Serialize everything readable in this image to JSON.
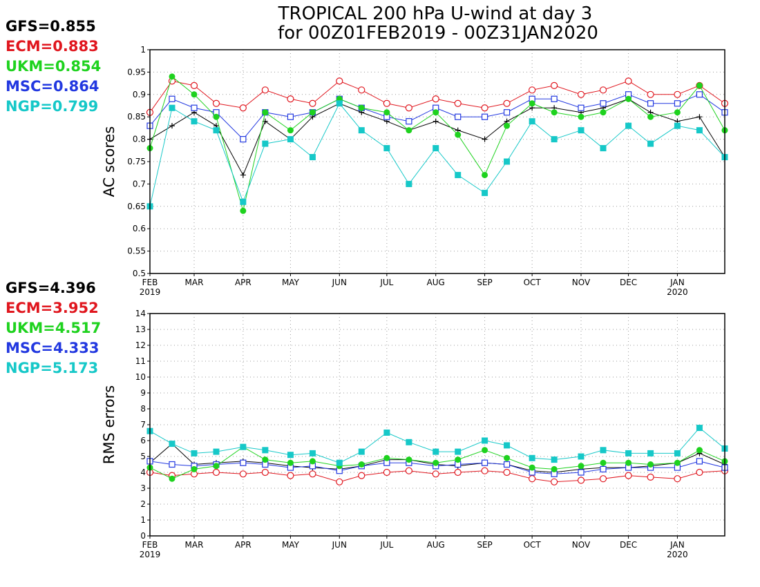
{
  "chart_data": [
    {
      "type": "line",
      "title": [
        "TROPICAL 200 hPa U-wind at day 3",
        "for 00Z01FEB2019 - 00Z31JAN2020"
      ],
      "ylabel": "AC scores",
      "ylim": [
        0.5,
        1.0
      ],
      "yticks": [
        "0.5",
        "0.55",
        "0.6",
        "0.65",
        "0.7",
        "0.75",
        "0.8",
        "0.85",
        "0.9",
        "0.95",
        "1"
      ],
      "xlim": [
        "2019-02-01",
        "2020-01-31"
      ],
      "xticks": [
        {
          "label": "FEB",
          "sub": "2019",
          "date": "2019-02-01"
        },
        {
          "label": "MAR",
          "date": "2019-03-01"
        },
        {
          "label": "APR",
          "date": "2019-04-01"
        },
        {
          "label": "MAY",
          "date": "2019-05-01"
        },
        {
          "label": "JUN",
          "date": "2019-06-01"
        },
        {
          "label": "JUL",
          "date": "2019-07-01"
        },
        {
          "label": "AUG",
          "date": "2019-08-01"
        },
        {
          "label": "SEP",
          "date": "2019-09-01"
        },
        {
          "label": "OCT",
          "date": "2019-10-01"
        },
        {
          "label": "NOV",
          "date": "2019-11-01"
        },
        {
          "label": "DEC",
          "date": "2019-12-01"
        },
        {
          "label": "JAN",
          "sub": "2020",
          "date": "2020-01-01"
        }
      ],
      "grid": true,
      "legend": [
        {
          "text": "GFS=0.855",
          "color": "#000000"
        },
        {
          "text": "ECM=0.883",
          "color": "#e0161e"
        },
        {
          "text": "UKM=0.854",
          "color": "#1ed21e"
        },
        {
          "text": "MSC=0.864",
          "color": "#2238e0"
        },
        {
          "text": "NGP=0.799",
          "color": "#16c8c8"
        }
      ],
      "series": [
        {
          "name": "GFS",
          "marker": "plus",
          "color": "#000000",
          "x": [
            "2019-02-01",
            "2019-02-15",
            "2019-03-01",
            "2019-03-15",
            "2019-04-01",
            "2019-04-15",
            "2019-05-01",
            "2019-05-15",
            "2019-06-01",
            "2019-06-15",
            "2019-07-01",
            "2019-07-15",
            "2019-08-01",
            "2019-08-15",
            "2019-09-01",
            "2019-09-15",
            "2019-10-01",
            "2019-10-15",
            "2019-11-01",
            "2019-11-15",
            "2019-12-01",
            "2019-12-15",
            "2020-01-01",
            "2020-01-15",
            "2020-01-31"
          ],
          "y": [
            0.8,
            0.83,
            0.86,
            0.83,
            0.72,
            0.84,
            0.8,
            0.85,
            0.88,
            0.86,
            0.84,
            0.82,
            0.84,
            0.82,
            0.8,
            0.84,
            0.87,
            0.87,
            0.86,
            0.87,
            0.89,
            0.86,
            0.84,
            0.85,
            0.76
          ]
        },
        {
          "name": "ECM",
          "marker": "circle",
          "color": "#e0161e",
          "x": [
            "2019-02-01",
            "2019-02-15",
            "2019-03-01",
            "2019-03-15",
            "2019-04-01",
            "2019-04-15",
            "2019-05-01",
            "2019-05-15",
            "2019-06-01",
            "2019-06-15",
            "2019-07-01",
            "2019-07-15",
            "2019-08-01",
            "2019-08-15",
            "2019-09-01",
            "2019-09-15",
            "2019-10-01",
            "2019-10-15",
            "2019-11-01",
            "2019-11-15",
            "2019-12-01",
            "2019-12-15",
            "2020-01-01",
            "2020-01-15",
            "2020-01-31"
          ],
          "y": [
            0.86,
            0.93,
            0.92,
            0.88,
            0.87,
            0.91,
            0.89,
            0.88,
            0.93,
            0.91,
            0.88,
            0.87,
            0.89,
            0.88,
            0.87,
            0.88,
            0.91,
            0.92,
            0.9,
            0.91,
            0.93,
            0.9,
            0.9,
            0.92,
            0.88
          ]
        },
        {
          "name": "UKM",
          "marker": "dot",
          "color": "#1ed21e",
          "x": [
            "2019-02-01",
            "2019-02-15",
            "2019-03-01",
            "2019-03-15",
            "2019-04-01",
            "2019-04-15",
            "2019-05-01",
            "2019-05-15",
            "2019-06-01",
            "2019-06-15",
            "2019-07-01",
            "2019-07-15",
            "2019-08-01",
            "2019-08-15",
            "2019-09-01",
            "2019-09-15",
            "2019-10-01",
            "2019-10-15",
            "2019-11-01",
            "2019-11-15",
            "2019-12-01",
            "2019-12-15",
            "2020-01-01",
            "2020-01-15",
            "2020-01-31"
          ],
          "y": [
            0.78,
            0.94,
            0.9,
            0.85,
            0.64,
            0.86,
            0.82,
            0.86,
            0.89,
            0.87,
            0.86,
            0.82,
            0.86,
            0.81,
            0.72,
            0.83,
            0.88,
            0.86,
            0.85,
            0.86,
            0.89,
            0.85,
            0.86,
            0.92,
            0.82
          ]
        },
        {
          "name": "MSC",
          "marker": "square-open",
          "color": "#2238e0",
          "x": [
            "2019-02-01",
            "2019-02-15",
            "2019-03-01",
            "2019-03-15",
            "2019-04-01",
            "2019-04-15",
            "2019-05-01",
            "2019-05-15",
            "2019-06-01",
            "2019-06-15",
            "2019-07-01",
            "2019-07-15",
            "2019-08-01",
            "2019-08-15",
            "2019-09-01",
            "2019-09-15",
            "2019-10-01",
            "2019-10-15",
            "2019-11-01",
            "2019-11-15",
            "2019-12-01",
            "2019-12-15",
            "2020-01-01",
            "2020-01-15",
            "2020-01-31"
          ],
          "y": [
            0.83,
            0.89,
            0.87,
            0.86,
            0.8,
            0.86,
            0.85,
            0.86,
            0.89,
            0.87,
            0.85,
            0.84,
            0.87,
            0.85,
            0.85,
            0.86,
            0.89,
            0.89,
            0.87,
            0.88,
            0.9,
            0.88,
            0.88,
            0.9,
            0.86
          ]
        },
        {
          "name": "NGP",
          "marker": "square",
          "color": "#16c8c8",
          "x": [
            "2019-02-01",
            "2019-02-15",
            "2019-03-01",
            "2019-03-15",
            "2019-04-01",
            "2019-04-15",
            "2019-05-01",
            "2019-05-15",
            "2019-06-01",
            "2019-06-15",
            "2019-07-01",
            "2019-07-15",
            "2019-08-01",
            "2019-08-15",
            "2019-09-01",
            "2019-09-15",
            "2019-10-01",
            "2019-10-15",
            "2019-11-01",
            "2019-11-15",
            "2019-12-01",
            "2019-12-15",
            "2020-01-01",
            "2020-01-15",
            "2020-01-31"
          ],
          "y": [
            0.65,
            0.87,
            0.84,
            0.82,
            0.66,
            0.79,
            0.8,
            0.76,
            0.88,
            0.82,
            0.78,
            0.7,
            0.78,
            0.72,
            0.68,
            0.75,
            0.84,
            0.8,
            0.82,
            0.78,
            0.83,
            0.79,
            0.83,
            0.82,
            0.76
          ]
        }
      ]
    },
    {
      "type": "line",
      "ylabel": "RMS errors",
      "ylim": [
        0,
        14
      ],
      "yticks": [
        "0",
        "1",
        "2",
        "3",
        "4",
        "5",
        "6",
        "7",
        "8",
        "9",
        "10",
        "11",
        "12",
        "13",
        "14"
      ],
      "xlim": [
        "2019-02-01",
        "2020-01-31"
      ],
      "xticks": [
        {
          "label": "FEB",
          "sub": "2019",
          "date": "2019-02-01"
        },
        {
          "label": "MAR",
          "date": "2019-03-01"
        },
        {
          "label": "APR",
          "date": "2019-04-01"
        },
        {
          "label": "MAY",
          "date": "2019-05-01"
        },
        {
          "label": "JUN",
          "date": "2019-06-01"
        },
        {
          "label": "JUL",
          "date": "2019-07-01"
        },
        {
          "label": "AUG",
          "date": "2019-08-01"
        },
        {
          "label": "SEP",
          "date": "2019-09-01"
        },
        {
          "label": "OCT",
          "date": "2019-10-01"
        },
        {
          "label": "NOV",
          "date": "2019-11-01"
        },
        {
          "label": "DEC",
          "date": "2019-12-01"
        },
        {
          "label": "JAN",
          "sub": "2020",
          "date": "2020-01-01"
        }
      ],
      "grid": true,
      "legend": [
        {
          "text": "GFS=4.396",
          "color": "#000000"
        },
        {
          "text": "ECM=3.952",
          "color": "#e0161e"
        },
        {
          "text": "UKM=4.517",
          "color": "#1ed21e"
        },
        {
          "text": "MSC=4.333",
          "color": "#2238e0"
        },
        {
          "text": "NGP=5.173",
          "color": "#16c8c8"
        }
      ],
      "series": [
        {
          "name": "GFS",
          "marker": "plus",
          "color": "#000000",
          "x": [
            "2019-02-01",
            "2019-02-15",
            "2019-03-01",
            "2019-03-15",
            "2019-04-01",
            "2019-04-15",
            "2019-05-01",
            "2019-05-15",
            "2019-06-01",
            "2019-06-15",
            "2019-07-01",
            "2019-07-15",
            "2019-08-01",
            "2019-08-15",
            "2019-09-01",
            "2019-09-15",
            "2019-10-01",
            "2019-10-15",
            "2019-11-01",
            "2019-11-15",
            "2019-12-01",
            "2019-12-15",
            "2020-01-01",
            "2020-01-15",
            "2020-01-31"
          ],
          "y": [
            4.6,
            5.8,
            4.5,
            4.6,
            4.7,
            4.6,
            4.4,
            4.3,
            4.2,
            4.4,
            4.8,
            4.8,
            4.5,
            4.4,
            4.6,
            4.5,
            4.1,
            4.0,
            4.2,
            4.3,
            4.3,
            4.4,
            4.6,
            5.2,
            4.5
          ]
        },
        {
          "name": "ECM",
          "marker": "circle",
          "color": "#e0161e",
          "x": [
            "2019-02-01",
            "2019-02-15",
            "2019-03-01",
            "2019-03-15",
            "2019-04-01",
            "2019-04-15",
            "2019-05-01",
            "2019-05-15",
            "2019-06-01",
            "2019-06-15",
            "2019-07-01",
            "2019-07-15",
            "2019-08-01",
            "2019-08-15",
            "2019-09-01",
            "2019-09-15",
            "2019-10-01",
            "2019-10-15",
            "2019-11-01",
            "2019-11-15",
            "2019-12-01",
            "2019-12-15",
            "2020-01-01",
            "2020-01-15",
            "2020-01-31"
          ],
          "y": [
            4.0,
            3.8,
            3.9,
            4.0,
            3.9,
            4.0,
            3.8,
            3.9,
            3.4,
            3.8,
            4.0,
            4.1,
            3.9,
            4.0,
            4.1,
            4.0,
            3.6,
            3.4,
            3.5,
            3.6,
            3.8,
            3.7,
            3.6,
            4.0,
            4.1
          ]
        },
        {
          "name": "UKM",
          "marker": "dot",
          "color": "#1ed21e",
          "x": [
            "2019-02-01",
            "2019-02-15",
            "2019-03-01",
            "2019-03-15",
            "2019-04-01",
            "2019-04-15",
            "2019-05-01",
            "2019-05-15",
            "2019-06-01",
            "2019-06-15",
            "2019-07-01",
            "2019-07-15",
            "2019-08-01",
            "2019-08-15",
            "2019-09-01",
            "2019-09-15",
            "2019-10-01",
            "2019-10-15",
            "2019-11-01",
            "2019-11-15",
            "2019-12-01",
            "2019-12-15",
            "2020-01-01",
            "2020-01-15",
            "2020-01-31"
          ],
          "y": [
            4.3,
            3.6,
            4.2,
            4.4,
            5.6,
            4.8,
            4.6,
            4.7,
            4.4,
            4.5,
            4.9,
            4.8,
            4.6,
            4.8,
            5.4,
            4.9,
            4.3,
            4.2,
            4.4,
            4.6,
            4.6,
            4.5,
            4.6,
            5.4,
            4.7
          ]
        },
        {
          "name": "MSC",
          "marker": "square-open",
          "color": "#2238e0",
          "x": [
            "2019-02-01",
            "2019-02-15",
            "2019-03-01",
            "2019-03-15",
            "2019-04-01",
            "2019-04-15",
            "2019-05-01",
            "2019-05-15",
            "2019-06-01",
            "2019-06-15",
            "2019-07-01",
            "2019-07-15",
            "2019-08-01",
            "2019-08-15",
            "2019-09-01",
            "2019-09-15",
            "2019-10-01",
            "2019-10-15",
            "2019-11-01",
            "2019-11-15",
            "2019-12-01",
            "2019-12-15",
            "2020-01-01",
            "2020-01-15",
            "2020-01-31"
          ],
          "y": [
            4.7,
            4.5,
            4.4,
            4.5,
            4.6,
            4.5,
            4.3,
            4.4,
            4.1,
            4.4,
            4.6,
            4.6,
            4.4,
            4.5,
            4.6,
            4.5,
            4.0,
            3.9,
            4.0,
            4.2,
            4.3,
            4.3,
            4.3,
            4.7,
            4.3
          ]
        },
        {
          "name": "NGP",
          "marker": "square",
          "color": "#16c8c8",
          "x": [
            "2019-02-01",
            "2019-02-15",
            "2019-03-01",
            "2019-03-15",
            "2019-04-01",
            "2019-04-15",
            "2019-05-01",
            "2019-05-15",
            "2019-06-01",
            "2019-06-15",
            "2019-07-01",
            "2019-07-15",
            "2019-08-01",
            "2019-08-15",
            "2019-09-01",
            "2019-09-15",
            "2019-10-01",
            "2019-10-15",
            "2019-11-01",
            "2019-11-15",
            "2019-12-01",
            "2019-12-15",
            "2020-01-01",
            "2020-01-15",
            "2020-01-31"
          ],
          "y": [
            6.6,
            5.8,
            5.2,
            5.3,
            5.6,
            5.4,
            5.1,
            5.2,
            4.6,
            5.3,
            6.5,
            5.9,
            5.3,
            5.3,
            6.0,
            5.7,
            4.9,
            4.8,
            5.0,
            5.4,
            5.2,
            5.2,
            5.2,
            6.8,
            5.5
          ]
        }
      ]
    }
  ]
}
